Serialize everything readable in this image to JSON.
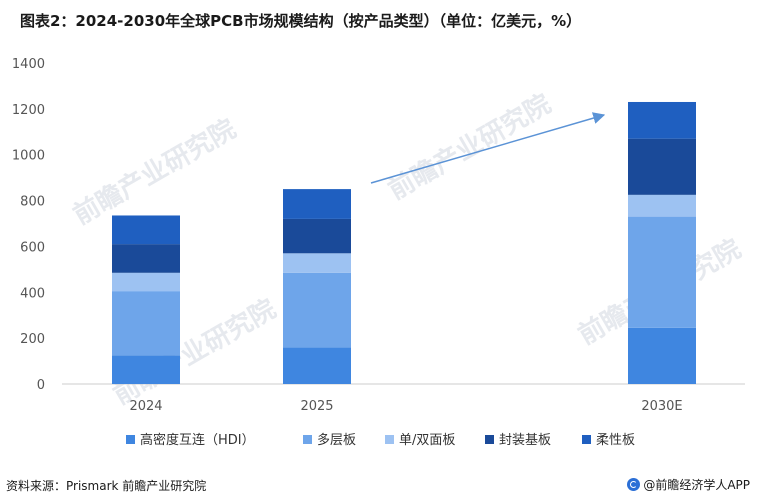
{
  "title": "图表2：2024-2030年全球PCB市场规模结构（按产品类型）（单位：亿美元，%）",
  "source": "资料来源：Prismark  前瞻产业研究院",
  "brand": "@前瞻经济学人APP",
  "watermark": "前瞻产业研究院",
  "chart_data": {
    "type": "bar",
    "stacked": true,
    "categories": [
      "2024",
      "2025",
      "2030E"
    ],
    "ylim": [
      0,
      1400
    ],
    "yticks": [
      0,
      200,
      400,
      600,
      800,
      1000,
      1200,
      1400
    ],
    "legend_position": "bottom",
    "grid": false,
    "series": [
      {
        "name": "高密度互连（HDI）",
        "color": "#3f86e0",
        "values": [
          125,
          160,
          245
        ]
      },
      {
        "name": "多层板",
        "color": "#6ea5ea",
        "values": [
          280,
          325,
          485
        ]
      },
      {
        "name": "单/双面板",
        "color": "#9dc2f2",
        "values": [
          80,
          85,
          95
        ]
      },
      {
        "name": "封装基板",
        "color": "#1a4a99",
        "values": [
          125,
          150,
          245
        ]
      },
      {
        "name": "柔性板",
        "color": "#1f5fc0",
        "values": [
          125,
          130,
          160
        ]
      }
    ],
    "annotation": {
      "type": "arrow",
      "color": "#5b93d6"
    }
  }
}
